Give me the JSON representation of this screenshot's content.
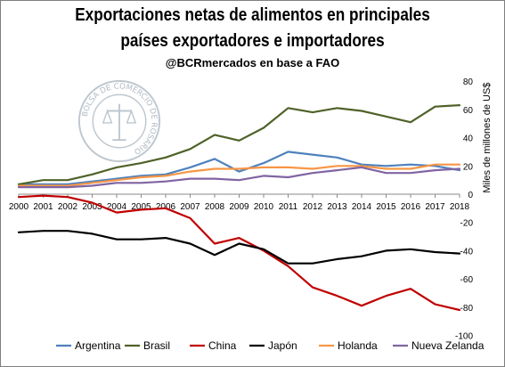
{
  "header": {
    "title_line1": "Exportaciones netas de alimentos en principales",
    "title_line2": "países exportadores e importadores",
    "subtitle": "@BCRmercados en base a FAO"
  },
  "logo": {
    "text": "BOLSA DE COMERCIO DE ROSARIO"
  },
  "chart_data": {
    "type": "line",
    "title": "Exportaciones netas de alimentos en principales países exportadores e importadores",
    "subtitle": "@BCRmercados en base a FAO",
    "xlabel": "",
    "ylabel": "Miles de millones de US$",
    "ylim": [
      -100,
      80
    ],
    "yticks": [
      -100,
      -80,
      -60,
      -40,
      -20,
      0,
      20,
      40,
      60,
      80
    ],
    "ytick_labels": [
      "-100",
      "-80",
      "-60",
      "-40",
      "-20",
      "0",
      "20",
      "40",
      "60",
      "80"
    ],
    "y_axis_side": "right",
    "grid": false,
    "legend_position": "bottom",
    "x": [
      "2000",
      "2001",
      "2002",
      "2003",
      "2004",
      "2005",
      "2006",
      "2007",
      "2008",
      "2009",
      "2010",
      "2011",
      "2012",
      "2013",
      "2014",
      "2015",
      "2016",
      "2017",
      "2018"
    ],
    "series": [
      {
        "name": "Argentina",
        "color": "#4f81bd",
        "values": [
          7,
          7,
          7,
          9,
          11,
          13,
          14,
          19,
          25,
          16,
          22,
          30,
          28,
          26,
          21,
          20,
          21,
          20,
          17
        ]
      },
      {
        "name": "Brasil",
        "color": "#4f6228",
        "values": [
          7,
          10,
          10,
          14,
          19,
          22,
          26,
          32,
          42,
          38,
          47,
          61,
          58,
          61,
          59,
          55,
          51,
          62,
          63
        ]
      },
      {
        "name": "China",
        "color": "#c00000",
        "values": [
          -2,
          -1,
          -2,
          -6,
          -13,
          -11,
          -10,
          -17,
          -35,
          -31,
          -40,
          -51,
          -66,
          -72,
          -79,
          -72,
          -67,
          -78,
          -82
        ]
      },
      {
        "name": "Japón",
        "color": "#000000",
        "values": [
          -27,
          -26,
          -26,
          -28,
          -32,
          -32,
          -31,
          -35,
          -43,
          -35,
          -39,
          -49,
          -49,
          -46,
          -44,
          -40,
          -39,
          -41,
          -42
        ]
      },
      {
        "name": "Holanda",
        "color": "#f79646",
        "values": [
          6,
          6,
          6,
          8,
          10,
          12,
          13,
          16,
          18,
          18,
          19,
          19,
          18,
          20,
          20,
          18,
          18,
          21,
          21
        ]
      },
      {
        "name": "Nueva Zelanda",
        "color": "#8064a2",
        "values": [
          5,
          5,
          5,
          6,
          8,
          8,
          9,
          11,
          11,
          10,
          13,
          12,
          15,
          17,
          19,
          15,
          15,
          17,
          18
        ]
      }
    ]
  }
}
